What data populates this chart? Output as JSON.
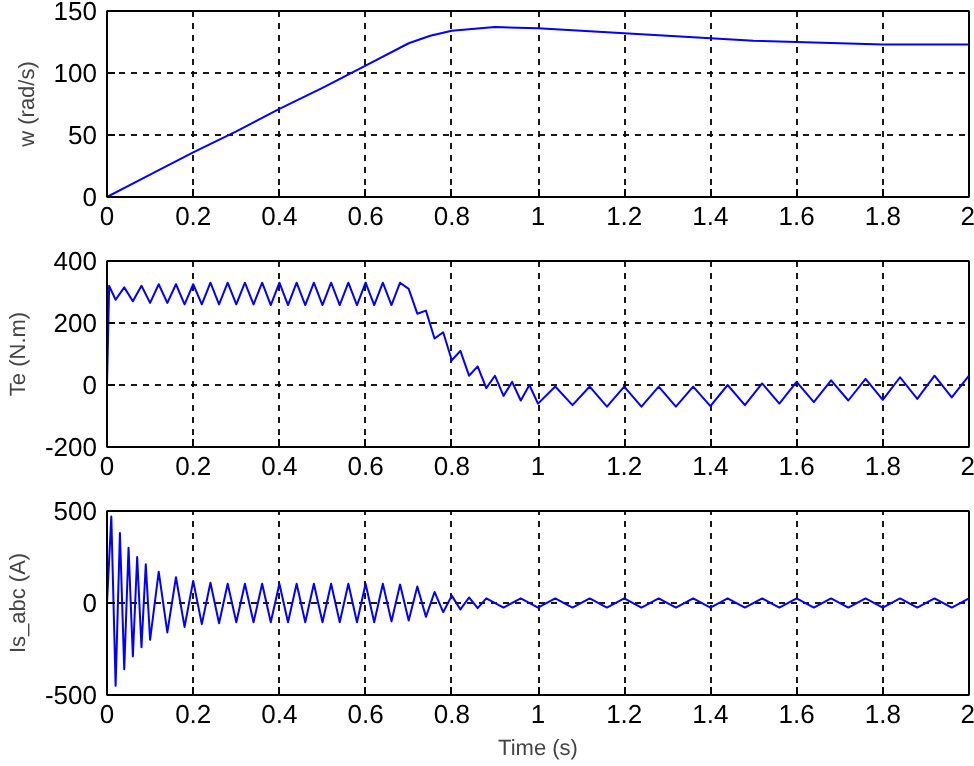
{
  "chart_data": [
    {
      "type": "line",
      "ylabel": "w (rad/s)",
      "xlim": [
        0,
        2
      ],
      "ylim": [
        0,
        150
      ],
      "xticks": [
        0,
        0.2,
        0.4,
        0.6,
        0.8,
        1,
        1.2,
        1.4,
        1.6,
        1.8,
        2
      ],
      "yticks": [
        0,
        50,
        100,
        150
      ],
      "grid": true,
      "line_style": "solid",
      "series": [
        {
          "color": "#0000ff",
          "x": [
            0,
            0.1,
            0.2,
            0.3,
            0.4,
            0.5,
            0.6,
            0.7,
            0.75,
            0.8,
            0.9,
            1.0,
            1.1,
            1.2,
            1.3,
            1.4,
            1.5,
            1.6,
            1.7,
            1.8,
            1.9,
            2.0
          ],
          "values": [
            0,
            18,
            36,
            53,
            71,
            88,
            106,
            124,
            130,
            134,
            137,
            136,
            134,
            132,
            130,
            128,
            126,
            125,
            124,
            123,
            123,
            123
          ]
        }
      ]
    },
    {
      "type": "line",
      "ylabel": "Te (N.m)",
      "xlim": [
        0,
        2
      ],
      "ylim": [
        -200,
        400
      ],
      "xticks": [
        0,
        0.2,
        0.4,
        0.6,
        0.8,
        1,
        1.2,
        1.4,
        1.6,
        1.8,
        2
      ],
      "yticks": [
        -200,
        0,
        200,
        400
      ],
      "grid": true,
      "line_style": "solid",
      "series": [
        {
          "color": "#0000ff",
          "x": [
            0,
            0.005,
            0.02,
            0.04,
            0.06,
            0.08,
            0.1,
            0.12,
            0.14,
            0.16,
            0.18,
            0.2,
            0.22,
            0.24,
            0.26,
            0.28,
            0.3,
            0.32,
            0.34,
            0.36,
            0.38,
            0.4,
            0.42,
            0.44,
            0.46,
            0.48,
            0.5,
            0.52,
            0.54,
            0.56,
            0.58,
            0.6,
            0.62,
            0.64,
            0.66,
            0.68,
            0.7,
            0.72,
            0.74,
            0.76,
            0.78,
            0.8,
            0.82,
            0.84,
            0.86,
            0.88,
            0.9,
            0.92,
            0.94,
            0.96,
            0.98,
            1.0,
            1.04,
            1.08,
            1.12,
            1.16,
            1.2,
            1.24,
            1.28,
            1.32,
            1.36,
            1.4,
            1.44,
            1.48,
            1.52,
            1.56,
            1.6,
            1.64,
            1.68,
            1.72,
            1.76,
            1.8,
            1.84,
            1.88,
            1.92,
            1.96,
            2.0
          ],
          "values": [
            0,
            320,
            275,
            315,
            270,
            320,
            265,
            325,
            265,
            325,
            260,
            325,
            260,
            330,
            260,
            330,
            260,
            330,
            260,
            330,
            258,
            330,
            258,
            330,
            258,
            330,
            258,
            330,
            258,
            330,
            258,
            330,
            258,
            330,
            258,
            330,
            310,
            230,
            240,
            150,
            170,
            80,
            110,
            30,
            60,
            -10,
            30,
            -35,
            10,
            -50,
            0,
            -60,
            -5,
            -65,
            -5,
            -70,
            -5,
            -70,
            -5,
            -70,
            -5,
            -68,
            0,
            -65,
            5,
            -60,
            10,
            -55,
            15,
            -50,
            20,
            -48,
            25,
            -45,
            30,
            -40,
            30
          ]
        }
      ]
    },
    {
      "type": "line",
      "ylabel": "Is_abc (A)",
      "xlabel": "Time (s)",
      "xlim": [
        0,
        2
      ],
      "ylim": [
        -500,
        500
      ],
      "xticks": [
        0,
        0.2,
        0.4,
        0.6,
        0.8,
        1,
        1.2,
        1.4,
        1.6,
        1.8,
        2
      ],
      "yticks": [
        -500,
        0,
        500
      ],
      "grid": true,
      "line_style": "solid",
      "series": [
        {
          "color": "#0000ff",
          "x": [
            0,
            0.01,
            0.02,
            0.03,
            0.04,
            0.05,
            0.06,
            0.07,
            0.08,
            0.09,
            0.1,
            0.12,
            0.14,
            0.16,
            0.18,
            0.2,
            0.22,
            0.24,
            0.26,
            0.28,
            0.3,
            0.32,
            0.34,
            0.36,
            0.38,
            0.4,
            0.42,
            0.44,
            0.46,
            0.48,
            0.5,
            0.52,
            0.54,
            0.56,
            0.58,
            0.6,
            0.62,
            0.64,
            0.66,
            0.68,
            0.7,
            0.72,
            0.74,
            0.76,
            0.78,
            0.8,
            0.82,
            0.84,
            0.86,
            0.88,
            0.92,
            0.96,
            1.0,
            1.04,
            1.08,
            1.12,
            1.16,
            1.2,
            1.24,
            1.28,
            1.32,
            1.36,
            1.4,
            1.44,
            1.48,
            1.52,
            1.56,
            1.6,
            1.64,
            1.68,
            1.72,
            1.76,
            1.8,
            1.84,
            1.88,
            1.92,
            1.96,
            2.0
          ],
          "values": [
            0,
            470,
            -450,
            380,
            -360,
            300,
            -290,
            250,
            -240,
            210,
            -200,
            170,
            -160,
            140,
            -130,
            120,
            -115,
            110,
            -110,
            105,
            -105,
            105,
            -105,
            105,
            -105,
            105,
            -105,
            105,
            -105,
            105,
            -105,
            105,
            -105,
            105,
            -105,
            105,
            -105,
            105,
            -100,
            100,
            -95,
            90,
            -75,
            60,
            -50,
            40,
            -35,
            30,
            -28,
            25,
            -25,
            25,
            -25,
            25,
            -25,
            25,
            -25,
            25,
            -25,
            25,
            -25,
            25,
            -25,
            25,
            -25,
            25,
            -25,
            25,
            -25,
            25,
            -25,
            25,
            -25,
            25,
            -25,
            25,
            -25,
            25
          ]
        }
      ]
    }
  ]
}
